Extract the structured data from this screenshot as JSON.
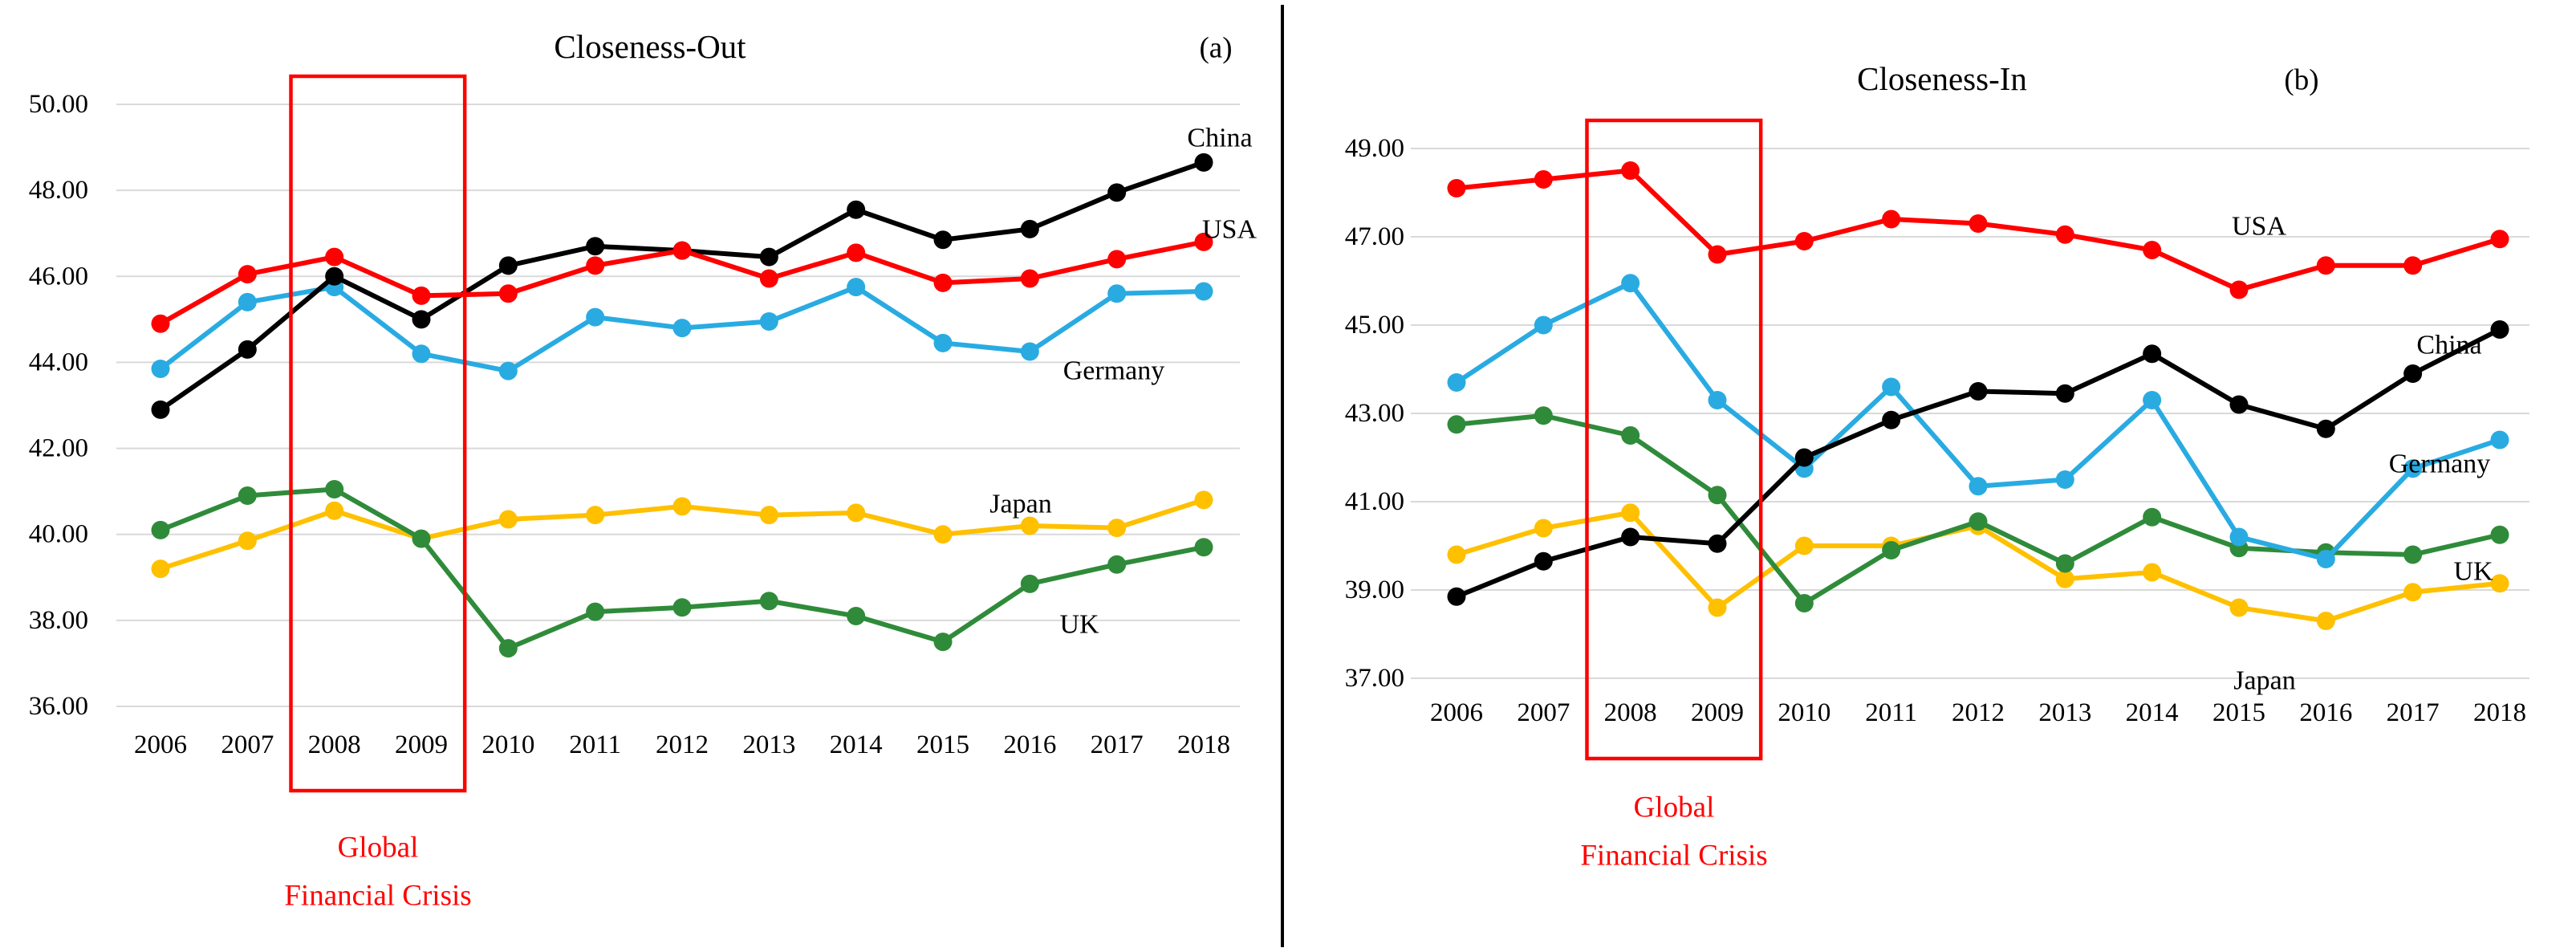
{
  "figure": {
    "background": "#ffffff",
    "divider_color": "#000000",
    "grid_color": "#d9d9d9",
    "annotation_color": "#ff0000"
  },
  "chart_data": [
    {
      "id": "closeness-out",
      "type": "line",
      "title": "Closeness-Out",
      "panel_label": "(a)",
      "xlabel": "",
      "ylabel": "",
      "x": [
        2006,
        2007,
        2008,
        2009,
        2010,
        2011,
        2012,
        2013,
        2014,
        2015,
        2016,
        2017,
        2018
      ],
      "ylim": [
        36,
        50
      ],
      "yticks": [
        50,
        48,
        46,
        44,
        42,
        40,
        38,
        36
      ],
      "ytick_labels": [
        "50.00",
        "48.00",
        "46.00",
        "44.00",
        "42.00",
        "40.00",
        "38.00",
        "36.00"
      ],
      "grid": true,
      "legend_position": "line-end-labels",
      "series": [
        {
          "name": "Japan",
          "color": "#FFC000",
          "values": [
            39.2,
            39.85,
            40.55,
            39.9,
            40.35,
            40.45,
            40.65,
            40.45,
            40.5,
            40.0,
            40.2,
            40.15,
            40.8
          ]
        },
        {
          "name": "UK",
          "color": "#2F8B3A",
          "values": [
            40.1,
            40.9,
            41.05,
            39.9,
            37.35,
            38.2,
            38.3,
            38.45,
            38.1,
            37.5,
            38.85,
            39.3,
            39.7
          ]
        },
        {
          "name": "Germany",
          "color": "#29ABE2",
          "values": [
            43.85,
            45.4,
            45.75,
            44.2,
            43.8,
            45.05,
            44.8,
            44.95,
            45.75,
            44.45,
            44.25,
            45.6,
            45.65
          ]
        },
        {
          "name": "China",
          "color": "#000000",
          "values": [
            42.9,
            44.3,
            46.0,
            45.0,
            46.25,
            46.7,
            46.6,
            46.45,
            47.55,
            46.85,
            47.1,
            47.95,
            48.65
          ]
        },
        {
          "name": "USA",
          "color": "#FF0000",
          "values": [
            44.9,
            46.05,
            46.45,
            45.55,
            45.6,
            46.25,
            46.6,
            45.95,
            46.55,
            45.85,
            45.95,
            46.4,
            46.8
          ]
        }
      ],
      "annotation": {
        "line1": "Global",
        "line2": "Financial Crisis",
        "band_years": [
          2008,
          2009
        ]
      }
    },
    {
      "id": "closeness-in",
      "type": "line",
      "title": "Closeness-In",
      "panel_label": "(b)",
      "xlabel": "",
      "ylabel": "",
      "x": [
        2006,
        2007,
        2008,
        2009,
        2010,
        2011,
        2012,
        2013,
        2014,
        2015,
        2016,
        2017,
        2018
      ],
      "ylim": [
        37,
        49
      ],
      "yticks": [
        49,
        47,
        45,
        43,
        41,
        39,
        37
      ],
      "ytick_labels": [
        "49.00",
        "47.00",
        "45.00",
        "43.00",
        "41.00",
        "39.00",
        "37.00"
      ],
      "grid": true,
      "legend_position": "line-end-labels",
      "series": [
        {
          "name": "Japan",
          "color": "#FFC000",
          "values": [
            39.8,
            40.4,
            40.75,
            38.6,
            40.0,
            40.0,
            40.45,
            39.25,
            39.4,
            38.6,
            38.3,
            38.95,
            39.15
          ]
        },
        {
          "name": "UK",
          "color": "#2F8B3A",
          "values": [
            42.75,
            42.95,
            42.5,
            41.15,
            38.7,
            39.9,
            40.55,
            39.6,
            40.65,
            39.95,
            39.85,
            39.8,
            40.25
          ]
        },
        {
          "name": "Germany",
          "color": "#29ABE2",
          "values": [
            43.7,
            45.0,
            45.95,
            43.3,
            41.75,
            43.6,
            41.35,
            41.5,
            43.3,
            40.2,
            39.7,
            41.75,
            42.4
          ]
        },
        {
          "name": "China",
          "color": "#000000",
          "values": [
            38.85,
            39.65,
            40.2,
            40.05,
            42.0,
            42.85,
            43.5,
            43.45,
            44.35,
            43.2,
            42.65,
            43.9,
            44.9
          ]
        },
        {
          "name": "USA",
          "color": "#FF0000",
          "values": [
            48.1,
            48.3,
            48.5,
            46.6,
            46.9,
            47.4,
            47.3,
            47.05,
            46.7,
            45.8,
            46.35,
            46.35,
            46.95
          ]
        }
      ],
      "annotation": {
        "line1": "Global",
        "line2": "Financial Crisis",
        "band_years": [
          2008,
          2009
        ]
      }
    }
  ]
}
